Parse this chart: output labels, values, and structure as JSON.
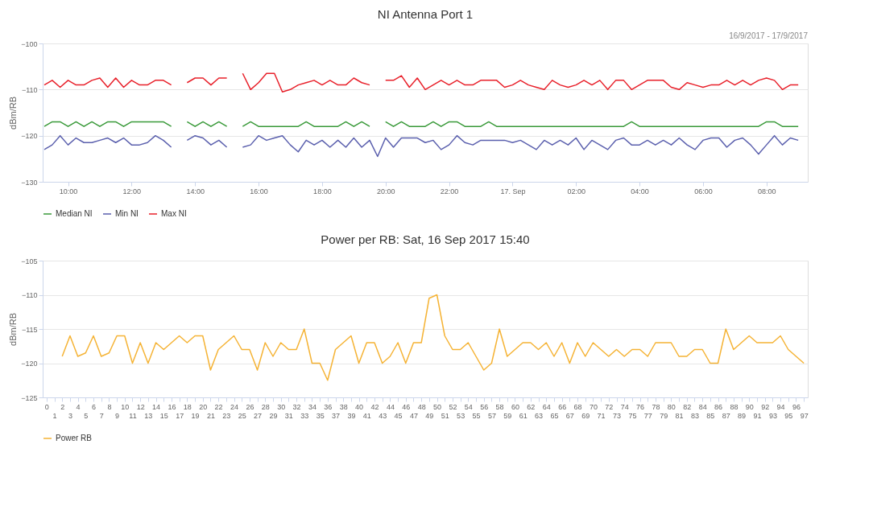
{
  "chart_data": [
    {
      "type": "line",
      "title": "NI Antenna Port 1",
      "ylabel": "dBm/RB",
      "annotations": [
        "16/9/2017 - 17/9/2017"
      ],
      "grid": "y",
      "legend": "bottom",
      "x": [
        "2017-09-16T09:15",
        "2017-09-16T09:30",
        "2017-09-16T09:45",
        "2017-09-16T10:00",
        "2017-09-16T10:15",
        "2017-09-16T10:30",
        "2017-09-16T10:45",
        "2017-09-16T11:00",
        "2017-09-16T11:15",
        "2017-09-16T11:30",
        "2017-09-16T11:45",
        "2017-09-16T12:00",
        "2017-09-16T12:15",
        "2017-09-16T12:30",
        "2017-09-16T12:45",
        "2017-09-16T13:00",
        "2017-09-16T13:15",
        "2017-09-16T13:30",
        "2017-09-16T13:45",
        "2017-09-16T14:00",
        "2017-09-16T14:15",
        "2017-09-16T14:30",
        "2017-09-16T14:45",
        "2017-09-16T15:00",
        "2017-09-16T15:15",
        "2017-09-16T15:30",
        "2017-09-16T15:45",
        "2017-09-16T16:00",
        "2017-09-16T16:15",
        "2017-09-16T16:30",
        "2017-09-16T16:45",
        "2017-09-16T17:00",
        "2017-09-16T17:15",
        "2017-09-16T17:30",
        "2017-09-16T17:45",
        "2017-09-16T18:00",
        "2017-09-16T18:15",
        "2017-09-16T18:30",
        "2017-09-16T18:45",
        "2017-09-16T19:00",
        "2017-09-16T19:15",
        "2017-09-16T19:30",
        "2017-09-16T19:45",
        "2017-09-16T20:00",
        "2017-09-16T20:15",
        "2017-09-16T20:30",
        "2017-09-16T20:45",
        "2017-09-16T21:00",
        "2017-09-16T21:15",
        "2017-09-16T21:30",
        "2017-09-16T21:45",
        "2017-09-16T22:00",
        "2017-09-16T22:15",
        "2017-09-16T22:30",
        "2017-09-16T22:45",
        "2017-09-16T23:00",
        "2017-09-16T23:15",
        "2017-09-16T23:30",
        "2017-09-16T23:45",
        "2017-09-17T00:00",
        "2017-09-17T00:15",
        "2017-09-17T00:30",
        "2017-09-17T00:45",
        "2017-09-17T01:00",
        "2017-09-17T01:15",
        "2017-09-17T01:30",
        "2017-09-17T01:45",
        "2017-09-17T02:00",
        "2017-09-17T02:15",
        "2017-09-17T02:30",
        "2017-09-17T02:45",
        "2017-09-17T03:00",
        "2017-09-17T03:15",
        "2017-09-17T03:30",
        "2017-09-17T03:45",
        "2017-09-17T04:00",
        "2017-09-17T04:15",
        "2017-09-17T04:30",
        "2017-09-17T04:45",
        "2017-09-17T05:00",
        "2017-09-17T05:15",
        "2017-09-17T05:30",
        "2017-09-17T05:45",
        "2017-09-17T06:00",
        "2017-09-17T06:15",
        "2017-09-17T06:30",
        "2017-09-17T06:45",
        "2017-09-17T07:00",
        "2017-09-17T07:15",
        "2017-09-17T07:30",
        "2017-09-17T07:45",
        "2017-09-17T08:00",
        "2017-09-17T08:15",
        "2017-09-17T08:30",
        "2017-09-17T08:45",
        "2017-09-17T09:00"
      ],
      "xlim": [
        "2017-09-16T09:12",
        "2017-09-17T09:18"
      ],
      "xticks": [
        {
          "value": "2017-09-16T10:00",
          "label": "10:00"
        },
        {
          "value": "2017-09-16T12:00",
          "label": "12:00"
        },
        {
          "value": "2017-09-16T14:00",
          "label": "14:00"
        },
        {
          "value": "2017-09-16T16:00",
          "label": "16:00"
        },
        {
          "value": "2017-09-16T18:00",
          "label": "18:00"
        },
        {
          "value": "2017-09-16T20:00",
          "label": "20:00"
        },
        {
          "value": "2017-09-16T22:00",
          "label": "22:00"
        },
        {
          "value": "2017-09-17T00:00",
          "label": "17. Sep"
        },
        {
          "value": "2017-09-17T02:00",
          "label": "02:00"
        },
        {
          "value": "2017-09-17T04:00",
          "label": "04:00"
        },
        {
          "value": "2017-09-17T06:00",
          "label": "06:00"
        },
        {
          "value": "2017-09-17T08:00",
          "label": "08:00"
        }
      ],
      "ylim": [
        -130,
        -100
      ],
      "yticks": [
        -130,
        -120,
        -110,
        -100
      ],
      "series": [
        {
          "name": "Median NI",
          "color": "#3a9a3a",
          "values": [
            -118,
            -117,
            -117,
            -118,
            -117,
            -118,
            -117,
            -118,
            -117,
            -117,
            -118,
            -117,
            -117,
            -117,
            -117,
            -117,
            -118,
            null,
            -117,
            -118,
            -117,
            -118,
            -117,
            -118,
            null,
            -118,
            -117,
            -118,
            -118,
            -118,
            -118,
            -118,
            -118,
            -117,
            -118,
            -118,
            -118,
            -118,
            -117,
            -118,
            -117,
            -118,
            null,
            -117,
            -118,
            -117,
            -118,
            -118,
            -118,
            -117,
            -118,
            -117,
            -117,
            -118,
            -118,
            -118,
            -117,
            -118,
            -118,
            -118,
            -118,
            -118,
            -118,
            -118,
            -118,
            -118,
            -118,
            -118,
            -118,
            -118,
            -118,
            -118,
            -118,
            -118,
            -117,
            -118,
            -118,
            -118,
            -118,
            -118,
            -118,
            -118,
            -118,
            -118,
            -118,
            -118,
            -118,
            -118,
            -118,
            -118,
            -118,
            -117,
            -117,
            -118,
            -118,
            -118
          ]
        },
        {
          "name": "Min NI",
          "color": "#5a5fad",
          "values": [
            -123,
            -122,
            -120,
            -122,
            -120.5,
            -121.5,
            -121.5,
            -121,
            -120.5,
            -121.5,
            -120.5,
            -122,
            -122,
            -121.5,
            -120,
            -121,
            -122.5,
            null,
            -121,
            -120,
            -120.5,
            -122,
            -121,
            -122.5,
            null,
            -122.5,
            -122,
            -120,
            -121,
            -120.5,
            -120,
            -122,
            -123.5,
            -121,
            -122,
            -121,
            -122.5,
            -121,
            -122.5,
            -120.5,
            -122.5,
            -121,
            -124.5,
            -120.5,
            -122.5,
            -120.5,
            -120.5,
            -120.5,
            -121.5,
            -121,
            -123,
            -122,
            -120,
            -121.5,
            -122,
            -121,
            -121,
            -121,
            -121,
            -121.5,
            -121,
            -122,
            -123,
            -121,
            -122,
            -121,
            -122,
            -120.5,
            -123,
            -121,
            -122,
            -123,
            -121,
            -120.5,
            -122,
            -122,
            -121,
            -122,
            -121,
            -122,
            -120.5,
            -122,
            -123,
            -121,
            -120.5,
            -120.5,
            -122.5,
            -121,
            -120.5,
            -122,
            -124,
            -122,
            -120,
            -122,
            -120.5,
            -121
          ]
        },
        {
          "name": "Max NI",
          "color": "#e8202a",
          "values": [
            -109,
            -108,
            -109.5,
            -108,
            -109,
            -109,
            -108,
            -107.5,
            -109.5,
            -107.5,
            -109.5,
            -108,
            -109,
            -109,
            -108,
            -108,
            -109,
            null,
            -108.5,
            -107.5,
            -107.5,
            -109,
            -107.5,
            -107.5,
            null,
            -106.5,
            -110,
            -108.5,
            -106.5,
            -106.5,
            -110.5,
            -110,
            -109,
            -108.5,
            -108,
            -109,
            -108,
            -109,
            -109,
            -107.5,
            -108.5,
            -109,
            null,
            -108,
            -108,
            -107,
            -109.5,
            -107.5,
            -110,
            -109,
            -108,
            -109,
            -108,
            -109,
            -109,
            -108,
            -108,
            -108,
            -109.5,
            -109,
            -108,
            -109,
            -109.5,
            -110,
            -108,
            -109,
            -109.5,
            -109,
            -108,
            -109,
            -108,
            -110,
            -108,
            -108,
            -110,
            -109,
            -108,
            -108,
            -108,
            -109.5,
            -110,
            -108.5,
            -109,
            -109.5,
            -109,
            -109,
            -108,
            -109,
            -108,
            -109,
            -108,
            -107.5,
            -108,
            -110,
            -109,
            -109
          ]
        }
      ]
    },
    {
      "type": "line",
      "title": "Power per RB: Sat, 16 Sep 2017 15:40",
      "ylabel": "dBm/RB",
      "grid": "y",
      "legend": "bottom",
      "categories": [
        "0",
        "1",
        "2",
        "3",
        "4",
        "5",
        "6",
        "7",
        "8",
        "9",
        "10",
        "11",
        "12",
        "13",
        "14",
        "15",
        "16",
        "17",
        "18",
        "19",
        "20",
        "21",
        "22",
        "23",
        "24",
        "25",
        "26",
        "27",
        "28",
        "29",
        "30",
        "31",
        "32",
        "33",
        "34",
        "35",
        "36",
        "37",
        "38",
        "39",
        "40",
        "41",
        "42",
        "43",
        "44",
        "45",
        "46",
        "47",
        "48",
        "49",
        "50",
        "51",
        "52",
        "53",
        "54",
        "55",
        "56",
        "57",
        "58",
        "59",
        "60",
        "61",
        "62",
        "63",
        "64",
        "65",
        "66",
        "67",
        "68",
        "69",
        "70",
        "71",
        "72",
        "73",
        "74",
        "75",
        "76",
        "77",
        "78",
        "79",
        "80",
        "81",
        "82",
        "83",
        "84",
        "85",
        "86",
        "87",
        "88",
        "89",
        "90",
        "91",
        "92",
        "93",
        "94",
        "95",
        "96",
        "97"
      ],
      "ylim": [
        -125,
        -105
      ],
      "yticks": [
        -125,
        -120,
        -115,
        -110,
        -105
      ],
      "series": [
        {
          "name": "Power RB",
          "color": "#f5b335",
          "values": [
            null,
            null,
            -119,
            -116,
            -119,
            -118.5,
            -116,
            -119,
            -118.5,
            -116,
            -116,
            -120,
            -117,
            -120,
            -117,
            -118,
            -117,
            -116,
            -117,
            -116,
            -116,
            -121,
            -118,
            -117,
            -116,
            -118,
            -118,
            -121,
            -117,
            -119,
            -117,
            -118,
            -118,
            -115,
            -120,
            -120,
            -122.5,
            -118,
            -117,
            -116,
            -120,
            -117,
            -117,
            -120,
            -119,
            -117,
            -120,
            -117,
            -117,
            -110.5,
            -110,
            -116,
            -118,
            -118,
            -117,
            -119,
            -121,
            -120,
            -115,
            -119,
            -118,
            -117,
            -117,
            -118,
            -117,
            -119,
            -117,
            -120,
            -117,
            -119,
            -117,
            -118,
            -119,
            -118,
            -119,
            -118,
            -118,
            -119,
            -117,
            -117,
            -117,
            -119,
            -119,
            -118,
            -118,
            -120,
            -120,
            -115,
            -118,
            -117,
            -116,
            -117,
            -117,
            -117,
            -116,
            -118,
            -119,
            -120
          ]
        }
      ]
    }
  ]
}
